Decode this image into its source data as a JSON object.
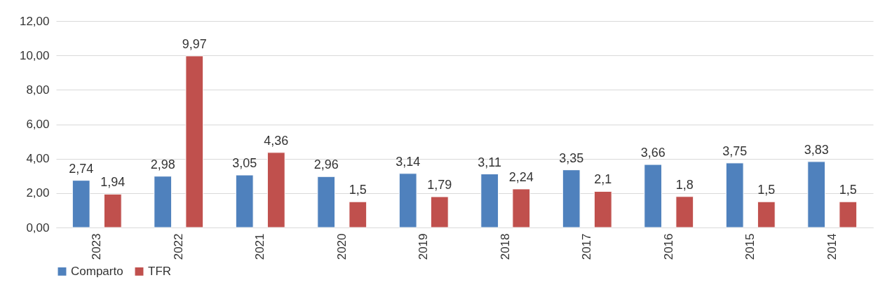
{
  "chart_data": {
    "type": "bar",
    "categories": [
      "2023",
      "2022",
      "2021",
      "2020",
      "2019",
      "2018",
      "2017",
      "2016",
      "2015",
      "2014"
    ],
    "series": [
      {
        "name": "Comparto",
        "color": "#4f81bd",
        "values": [
          2.74,
          2.98,
          3.05,
          2.96,
          3.14,
          3.11,
          3.35,
          3.66,
          3.75,
          3.83
        ],
        "value_labels": [
          "2,74",
          "2,98",
          "3,05",
          "2,96",
          "3,14",
          "3,11",
          "3,35",
          "3,66",
          "3,75",
          "3,83"
        ]
      },
      {
        "name": "TFR",
        "color": "#c0504d",
        "values": [
          1.94,
          9.97,
          4.36,
          1.5,
          1.79,
          2.24,
          2.1,
          1.8,
          1.5,
          1.5
        ],
        "value_labels": [
          "1,94",
          "9,97",
          "4,36",
          "1,5",
          "1,79",
          "2,24",
          "2,1",
          "1,8",
          "1,5",
          "1,5"
        ]
      }
    ],
    "ylim": [
      0,
      12
    ],
    "yticks": [
      {
        "value": 0,
        "label": "0,00"
      },
      {
        "value": 2,
        "label": "2,00"
      },
      {
        "value": 4,
        "label": "4,00"
      },
      {
        "value": 6,
        "label": "6,00"
      },
      {
        "value": 8,
        "label": "8,00"
      },
      {
        "value": 10,
        "label": "10,00"
      },
      {
        "value": 12,
        "label": "12,00"
      }
    ],
    "grid": "y",
    "legend": "bottom"
  }
}
